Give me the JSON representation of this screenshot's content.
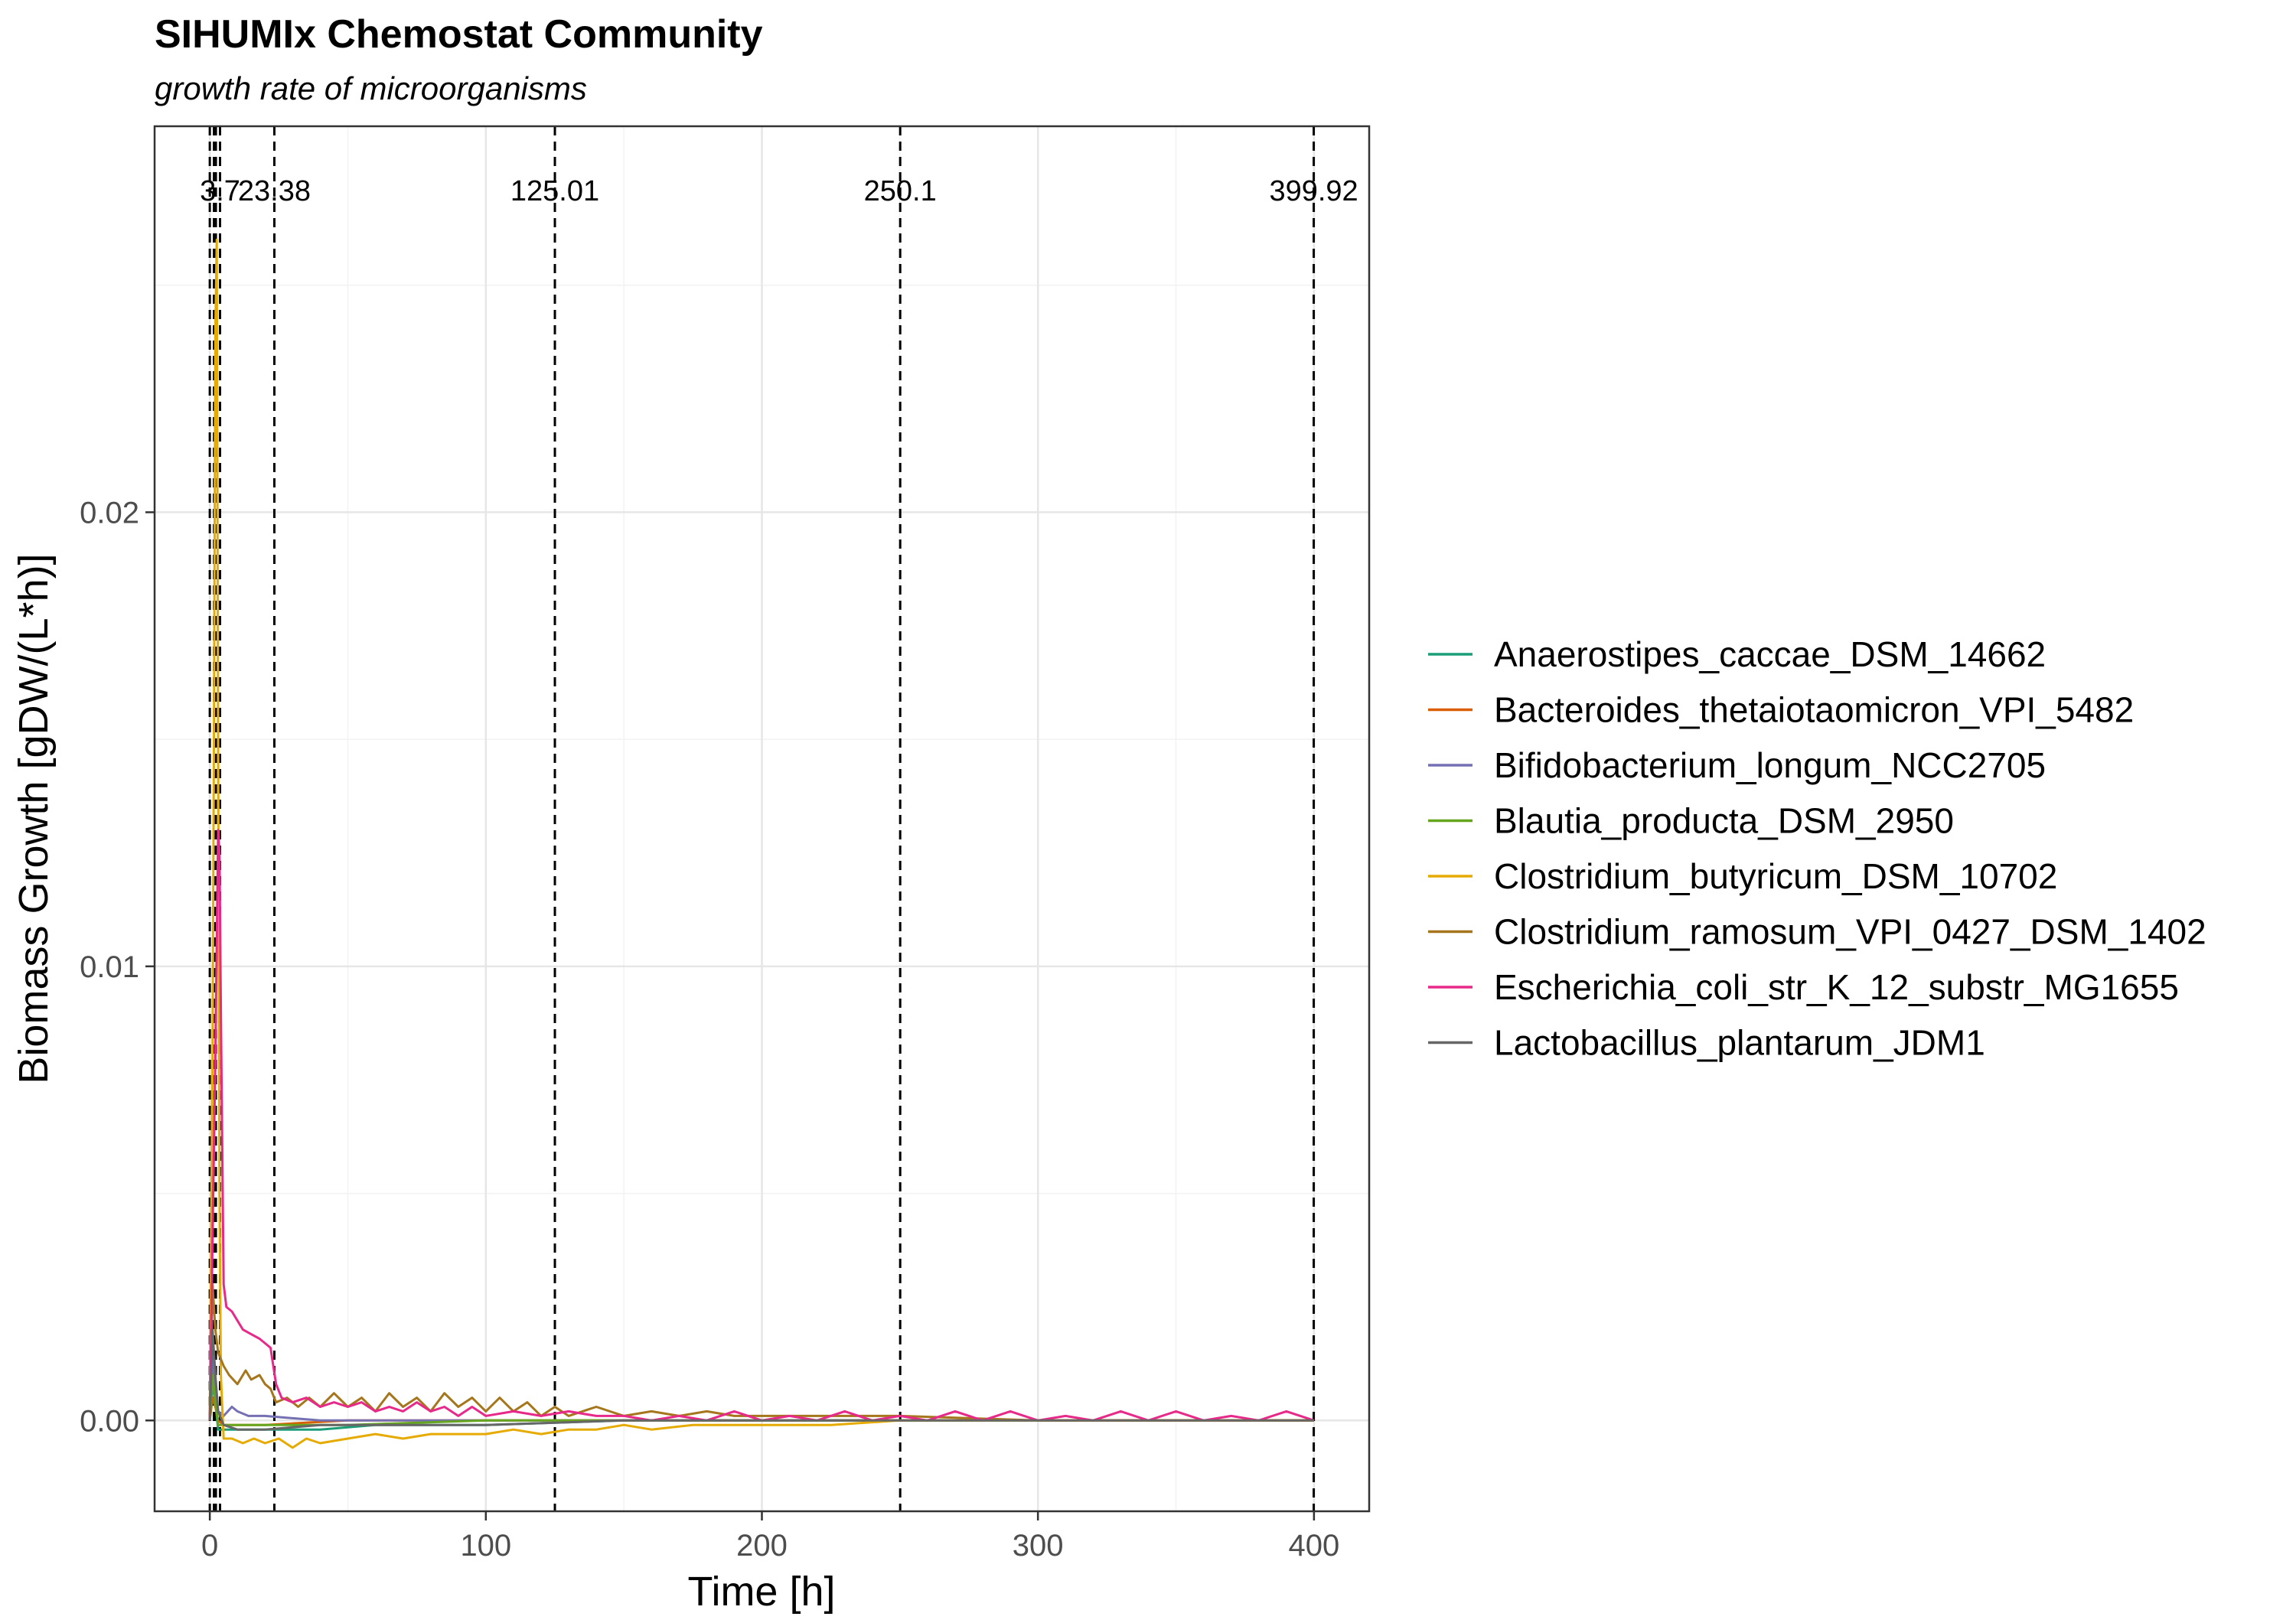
{
  "chart_data": {
    "type": "line",
    "title": "SIHUMIx Chemostat Community",
    "subtitle": "growth rate of microorganisms",
    "xlabel": "Time [h]",
    "ylabel": "Biomass Growth [gDW/(L*h)]",
    "xlim": [
      -20,
      420
    ],
    "ylim": [
      -0.002,
      0.0285
    ],
    "x_ticks": [
      0,
      100,
      200,
      300,
      400
    ],
    "x_tick_labels": [
      "0",
      "100",
      "200",
      "300",
      "400"
    ],
    "y_ticks": [
      0.0,
      0.01,
      0.02
    ],
    "y_tick_labels": [
      "0.00",
      "0.01",
      "0.02"
    ],
    "grid": true,
    "legend_position": "right",
    "vlines": [
      {
        "x": 0,
        "label": ""
      },
      {
        "x": 1.5,
        "label": ""
      },
      {
        "x": 2.2,
        "label": ""
      },
      {
        "x": 3.7,
        "label": "3.7"
      },
      {
        "x": 23.38,
        "label": "23.38"
      },
      {
        "x": 125.01,
        "label": "125.01"
      },
      {
        "x": 250.1,
        "label": "250.1"
      },
      {
        "x": 399.92,
        "label": "399.92"
      }
    ],
    "series": [
      {
        "name": "Anaerostipes_caccae_DSM_14662",
        "color": "#1b9e77",
        "points": [
          [
            0,
            0
          ],
          [
            1,
            0.0008
          ],
          [
            2,
            0.0004
          ],
          [
            3,
            -0.0002
          ],
          [
            5,
            -0.0002
          ],
          [
            10,
            -0.0002
          ],
          [
            20,
            -0.0002
          ],
          [
            40,
            -0.0002
          ],
          [
            60,
            -0.0001
          ],
          [
            100,
            -0.0001
          ],
          [
            150,
            0
          ],
          [
            200,
            0
          ],
          [
            300,
            0
          ],
          [
            400,
            0
          ]
        ]
      },
      {
        "name": "Bacteroides_thetaiotaomicron_VPI_5482",
        "color": "#d95f02",
        "points": [
          [
            0,
            0
          ],
          [
            1,
            0.0005
          ],
          [
            2,
            0.0003
          ],
          [
            3,
            0
          ],
          [
            5,
            -0.0001
          ],
          [
            10,
            -0.0001
          ],
          [
            20,
            -0.0001
          ],
          [
            50,
            0
          ],
          [
            100,
            0
          ],
          [
            200,
            0
          ],
          [
            300,
            0
          ],
          [
            400,
            0
          ]
        ]
      },
      {
        "name": "Bifidobacterium_longum_NCC2705",
        "color": "#7570b3",
        "points": [
          [
            0,
            0
          ],
          [
            1,
            0.0015
          ],
          [
            2,
            0.0006
          ],
          [
            3,
            0.0002
          ],
          [
            5,
            0.0001
          ],
          [
            8,
            0.0003
          ],
          [
            10,
            0.0002
          ],
          [
            14,
            0.0001
          ],
          [
            20,
            0.0001
          ],
          [
            40,
            0
          ],
          [
            100,
            0
          ],
          [
            200,
            0
          ],
          [
            300,
            0
          ],
          [
            400,
            0
          ]
        ]
      },
      {
        "name": "Blautia_producta_DSM_2950",
        "color": "#66a61e",
        "points": [
          [
            0,
            0
          ],
          [
            1,
            0.001
          ],
          [
            2,
            0.0004
          ],
          [
            3,
            -0.0001
          ],
          [
            5,
            -0.0001
          ],
          [
            10,
            -0.0001
          ],
          [
            20,
            -0.0001
          ],
          [
            50,
            -0.0001
          ],
          [
            100,
            0
          ],
          [
            200,
            0
          ],
          [
            300,
            0
          ],
          [
            400,
            0
          ]
        ]
      },
      {
        "name": "Clostridium_butyricum_DSM_10702",
        "color": "#e6ab02",
        "points": [
          [
            0,
            0
          ],
          [
            1,
            0.008
          ],
          [
            1.5,
            0.015
          ],
          [
            2,
            0.024
          ],
          [
            2.5,
            0.026
          ],
          [
            3,
            0.015
          ],
          [
            3.5,
            0.005
          ],
          [
            4,
            0.001
          ],
          [
            5,
            -0.0004
          ],
          [
            8,
            -0.0004
          ],
          [
            12,
            -0.0005
          ],
          [
            16,
            -0.0004
          ],
          [
            20,
            -0.0005
          ],
          [
            25,
            -0.0004
          ],
          [
            30,
            -0.0006
          ],
          [
            35,
            -0.0004
          ],
          [
            40,
            -0.0005
          ],
          [
            50,
            -0.0004
          ],
          [
            60,
            -0.0003
          ],
          [
            70,
            -0.0004
          ],
          [
            80,
            -0.0003
          ],
          [
            90,
            -0.0003
          ],
          [
            100,
            -0.0003
          ],
          [
            110,
            -0.0002
          ],
          [
            120,
            -0.0003
          ],
          [
            130,
            -0.0002
          ],
          [
            140,
            -0.0002
          ],
          [
            150,
            -0.0001
          ],
          [
            160,
            -0.0002
          ],
          [
            175,
            -0.0001
          ],
          [
            200,
            -0.0001
          ],
          [
            225,
            -0.0001
          ],
          [
            250,
            0
          ],
          [
            300,
            0
          ],
          [
            350,
            0
          ],
          [
            400,
            0
          ]
        ]
      },
      {
        "name": "Clostridium_ramosum_VPI_0427_DSM_1402",
        "color": "#a6761d",
        "points": [
          [
            0,
            0
          ],
          [
            1,
            0.003
          ],
          [
            2,
            0.002
          ],
          [
            3,
            0.0015
          ],
          [
            5,
            0.0012
          ],
          [
            7,
            0.001
          ],
          [
            10,
            0.0008
          ],
          [
            13,
            0.0011
          ],
          [
            15,
            0.0009
          ],
          [
            18,
            0.001
          ],
          [
            20,
            0.0008
          ],
          [
            22,
            0.0007
          ],
          [
            24,
            0.0004
          ],
          [
            28,
            0.0005
          ],
          [
            32,
            0.0003
          ],
          [
            36,
            0.0005
          ],
          [
            40,
            0.0003
          ],
          [
            45,
            0.0006
          ],
          [
            50,
            0.0003
          ],
          [
            55,
            0.0005
          ],
          [
            60,
            0.0002
          ],
          [
            65,
            0.0006
          ],
          [
            70,
            0.0003
          ],
          [
            75,
            0.0005
          ],
          [
            80,
            0.0002
          ],
          [
            85,
            0.0006
          ],
          [
            90,
            0.0003
          ],
          [
            95,
            0.0005
          ],
          [
            100,
            0.0002
          ],
          [
            105,
            0.0005
          ],
          [
            110,
            0.0002
          ],
          [
            115,
            0.0004
          ],
          [
            120,
            0.0001
          ],
          [
            125,
            0.0003
          ],
          [
            130,
            0.0001
          ],
          [
            140,
            0.0003
          ],
          [
            150,
            0.0001
          ],
          [
            160,
            0.0002
          ],
          [
            170,
            0.0001
          ],
          [
            180,
            0.0002
          ],
          [
            190,
            0.0001
          ],
          [
            200,
            0.0001
          ],
          [
            250,
            0.0001
          ],
          [
            300,
            0
          ],
          [
            350,
            0
          ],
          [
            400,
            0
          ]
        ]
      },
      {
        "name": "Escherichia_coli_str_K_12_substr_MG1655",
        "color": "#e7298a",
        "points": [
          [
            0,
            0
          ],
          [
            1,
            0.004
          ],
          [
            2,
            0.008
          ],
          [
            3,
            0.013
          ],
          [
            3.5,
            0.0125
          ],
          [
            4,
            0.009
          ],
          [
            5,
            0.003
          ],
          [
            6,
            0.0025
          ],
          [
            8,
            0.0024
          ],
          [
            10,
            0.0022
          ],
          [
            12,
            0.002
          ],
          [
            15,
            0.0019
          ],
          [
            18,
            0.0018
          ],
          [
            20,
            0.0017
          ],
          [
            22,
            0.0016
          ],
          [
            24,
            0.0008
          ],
          [
            26,
            0.0005
          ],
          [
            30,
            0.0004
          ],
          [
            35,
            0.0005
          ],
          [
            40,
            0.0003
          ],
          [
            45,
            0.0004
          ],
          [
            50,
            0.0003
          ],
          [
            55,
            0.0004
          ],
          [
            60,
            0.0002
          ],
          [
            65,
            0.0003
          ],
          [
            70,
            0.0002
          ],
          [
            75,
            0.0004
          ],
          [
            80,
            0.0002
          ],
          [
            85,
            0.0003
          ],
          [
            90,
            0.0001
          ],
          [
            95,
            0.0003
          ],
          [
            100,
            0.0001
          ],
          [
            110,
            0.0002
          ],
          [
            120,
            0.0001
          ],
          [
            130,
            0.0002
          ],
          [
            140,
            0.0001
          ],
          [
            150,
            0.0001
          ],
          [
            160,
            0
          ],
          [
            170,
            0.0001
          ],
          [
            180,
            0
          ],
          [
            190,
            0.0002
          ],
          [
            200,
            0
          ],
          [
            210,
            0.0001
          ],
          [
            220,
            0
          ],
          [
            230,
            0.0002
          ],
          [
            240,
            0
          ],
          [
            250,
            0.0001
          ],
          [
            260,
            0
          ],
          [
            270,
            0.0002
          ],
          [
            280,
            0
          ],
          [
            290,
            0.0002
          ],
          [
            300,
            0
          ],
          [
            310,
            0.0001
          ],
          [
            320,
            0
          ],
          [
            330,
            0.0002
          ],
          [
            340,
            0
          ],
          [
            350,
            0.0002
          ],
          [
            360,
            0
          ],
          [
            370,
            0.0001
          ],
          [
            380,
            0
          ],
          [
            390,
            0.0002
          ],
          [
            400,
            0
          ]
        ]
      },
      {
        "name": "Lactobacillus_plantarum_JDM1",
        "color": "#666666",
        "points": [
          [
            0,
            0
          ],
          [
            1,
            0.002
          ],
          [
            2,
            0.001
          ],
          [
            3,
            0.0002
          ],
          [
            5,
            -0.0001
          ],
          [
            10,
            -0.0002
          ],
          [
            20,
            -0.0002
          ],
          [
            40,
            -0.0001
          ],
          [
            100,
            -0.0001
          ],
          [
            150,
            0
          ],
          [
            200,
            0
          ],
          [
            300,
            0
          ],
          [
            400,
            0
          ]
        ]
      }
    ]
  }
}
